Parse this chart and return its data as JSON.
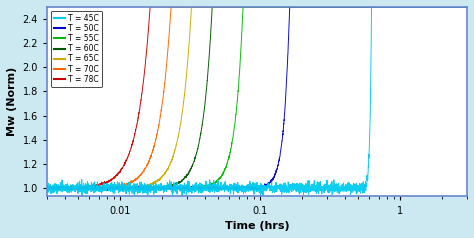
{
  "title": "",
  "xlabel": "Time (hrs)",
  "ylabel": "Mw (Norm)",
  "xlim": [
    0.003,
    3.0
  ],
  "ylim": [
    0.93,
    2.5
  ],
  "yticks": [
    1.0,
    1.2,
    1.4,
    1.6,
    1.8,
    2.0,
    2.2,
    2.4
  ],
  "background_color": "#cce8f0",
  "axes_bg": "#ffffff",
  "border_color": "#6688cc",
  "series": [
    {
      "label": "T = 78C",
      "color": "#cc0000",
      "t_onset": 0.0055,
      "t_rise": 0.0008,
      "noise": 0.004
    },
    {
      "label": "T = 70C",
      "color": "#ff6600",
      "t_onset": 0.0085,
      "t_rise": 0.0012,
      "noise": 0.004
    },
    {
      "label": "T = 65C",
      "color": "#ccaa00",
      "t_onset": 0.013,
      "t_rise": 0.0018,
      "noise": 0.004
    },
    {
      "label": "T = 60C",
      "color": "#005500",
      "t_onset": 0.02,
      "t_rise": 0.003,
      "noise": 0.004
    },
    {
      "label": "T = 55C",
      "color": "#00bb00",
      "t_onset": 0.038,
      "t_rise": 0.006,
      "noise": 0.005
    },
    {
      "label": "T = 50C",
      "color": "#0000cc",
      "t_onset": 0.1,
      "t_rise": 0.025,
      "noise": 0.006
    },
    {
      "label": "T = 45C",
      "color": "#00ccee",
      "t_onset": 0.55,
      "t_rise": 0.35,
      "noise": 0.022
    }
  ],
  "legend_labels_order": [
    "T = 45C",
    "T = 50C",
    "T = 55C",
    "T = 60C",
    "T = 65C",
    "T = 70C",
    "T = 78C"
  ],
  "legend_colors_order": [
    "#00ccee",
    "#0000cc",
    "#00bb00",
    "#005500",
    "#ccaa00",
    "#ff6600",
    "#cc0000"
  ]
}
